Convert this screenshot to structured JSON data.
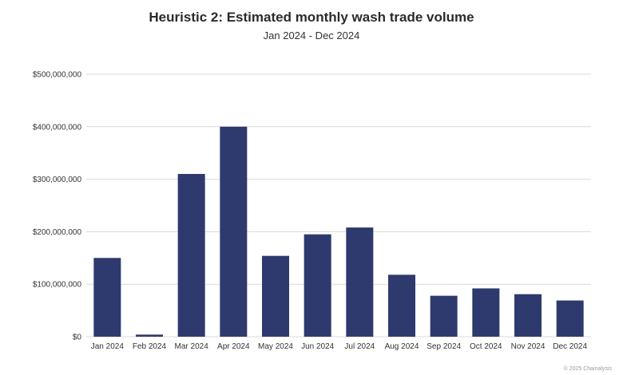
{
  "chart_data": {
    "type": "bar",
    "title": "Heuristic 2: Estimated monthly wash trade volume",
    "subtitle": "Jan 2024 - Dec 2024",
    "xlabel": "",
    "ylabel": "",
    "categories": [
      "Jan 2024",
      "Feb 2024",
      "Mar 2024",
      "Apr 2024",
      "May 2024",
      "Jun 2024",
      "Jul 2024",
      "Aug 2024",
      "Sep 2024",
      "Oct 2024",
      "Nov 2024",
      "Dec 2024"
    ],
    "values": [
      150000000,
      4000000,
      310000000,
      400000000,
      154000000,
      195000000,
      208000000,
      118000000,
      78000000,
      92000000,
      81000000,
      69000000
    ],
    "ylim": [
      0,
      500000000
    ],
    "yticks": [
      0,
      100000000,
      200000000,
      300000000,
      400000000,
      500000000
    ],
    "ytick_labels": [
      "$0",
      "$100,000,000",
      "$200,000,000",
      "$300,000,000",
      "$400,000,000",
      "$500,000,000"
    ],
    "grid": true,
    "legend": "none",
    "bar_color": "#2e3a6e",
    "grid_color": "#d9d9d9"
  },
  "footer": {
    "credit": "© 2025 Chainalysis"
  }
}
